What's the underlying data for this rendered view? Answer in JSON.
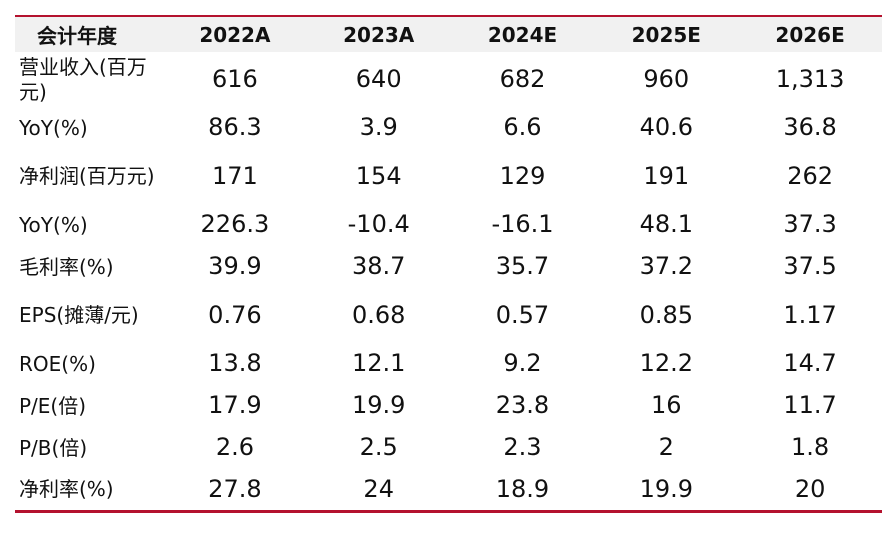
{
  "table": {
    "headers": [
      "会计年度",
      "2022A",
      "2023A",
      "2024E",
      "2025E",
      "2026E"
    ],
    "rows": [
      {
        "label": "营业收入(百万元)",
        "values": [
          "616",
          "640",
          "682",
          "960",
          "1,313"
        ]
      },
      {
        "label": "YoY(%)",
        "values": [
          "86.3",
          "3.9",
          "6.6",
          "40.6",
          "36.8"
        ]
      },
      {
        "label": "净利润(百万元)",
        "values": [
          "171",
          "154",
          "129",
          "191",
          "262"
        ]
      },
      {
        "label": "YoY(%)",
        "values": [
          "226.3",
          "-10.4",
          "-16.1",
          "48.1",
          "37.3"
        ]
      },
      {
        "label": "毛利率(%)",
        "values": [
          "39.9",
          "38.7",
          "35.7",
          "37.2",
          "37.5"
        ]
      },
      {
        "label": "EPS(摊薄/元)",
        "values": [
          "0.76",
          "0.68",
          "0.57",
          "0.85",
          "1.17"
        ]
      },
      {
        "label": "ROE(%)",
        "values": [
          "13.8",
          "12.1",
          "9.2",
          "12.2",
          "14.7"
        ]
      },
      {
        "label": "P/E(倍)",
        "values": [
          "17.9",
          "19.9",
          "23.8",
          "16",
          "11.7"
        ]
      },
      {
        "label": "P/B(倍)",
        "values": [
          "2.6",
          "2.5",
          "2.3",
          "2",
          "1.8"
        ]
      },
      {
        "label": "净利率(%)",
        "values": [
          "27.8",
          "24",
          "18.9",
          "19.9",
          "20"
        ]
      }
    ]
  },
  "colors": {
    "accent_border": "#b4122e",
    "header_background": "#f1f1f1",
    "text": "#111111"
  }
}
